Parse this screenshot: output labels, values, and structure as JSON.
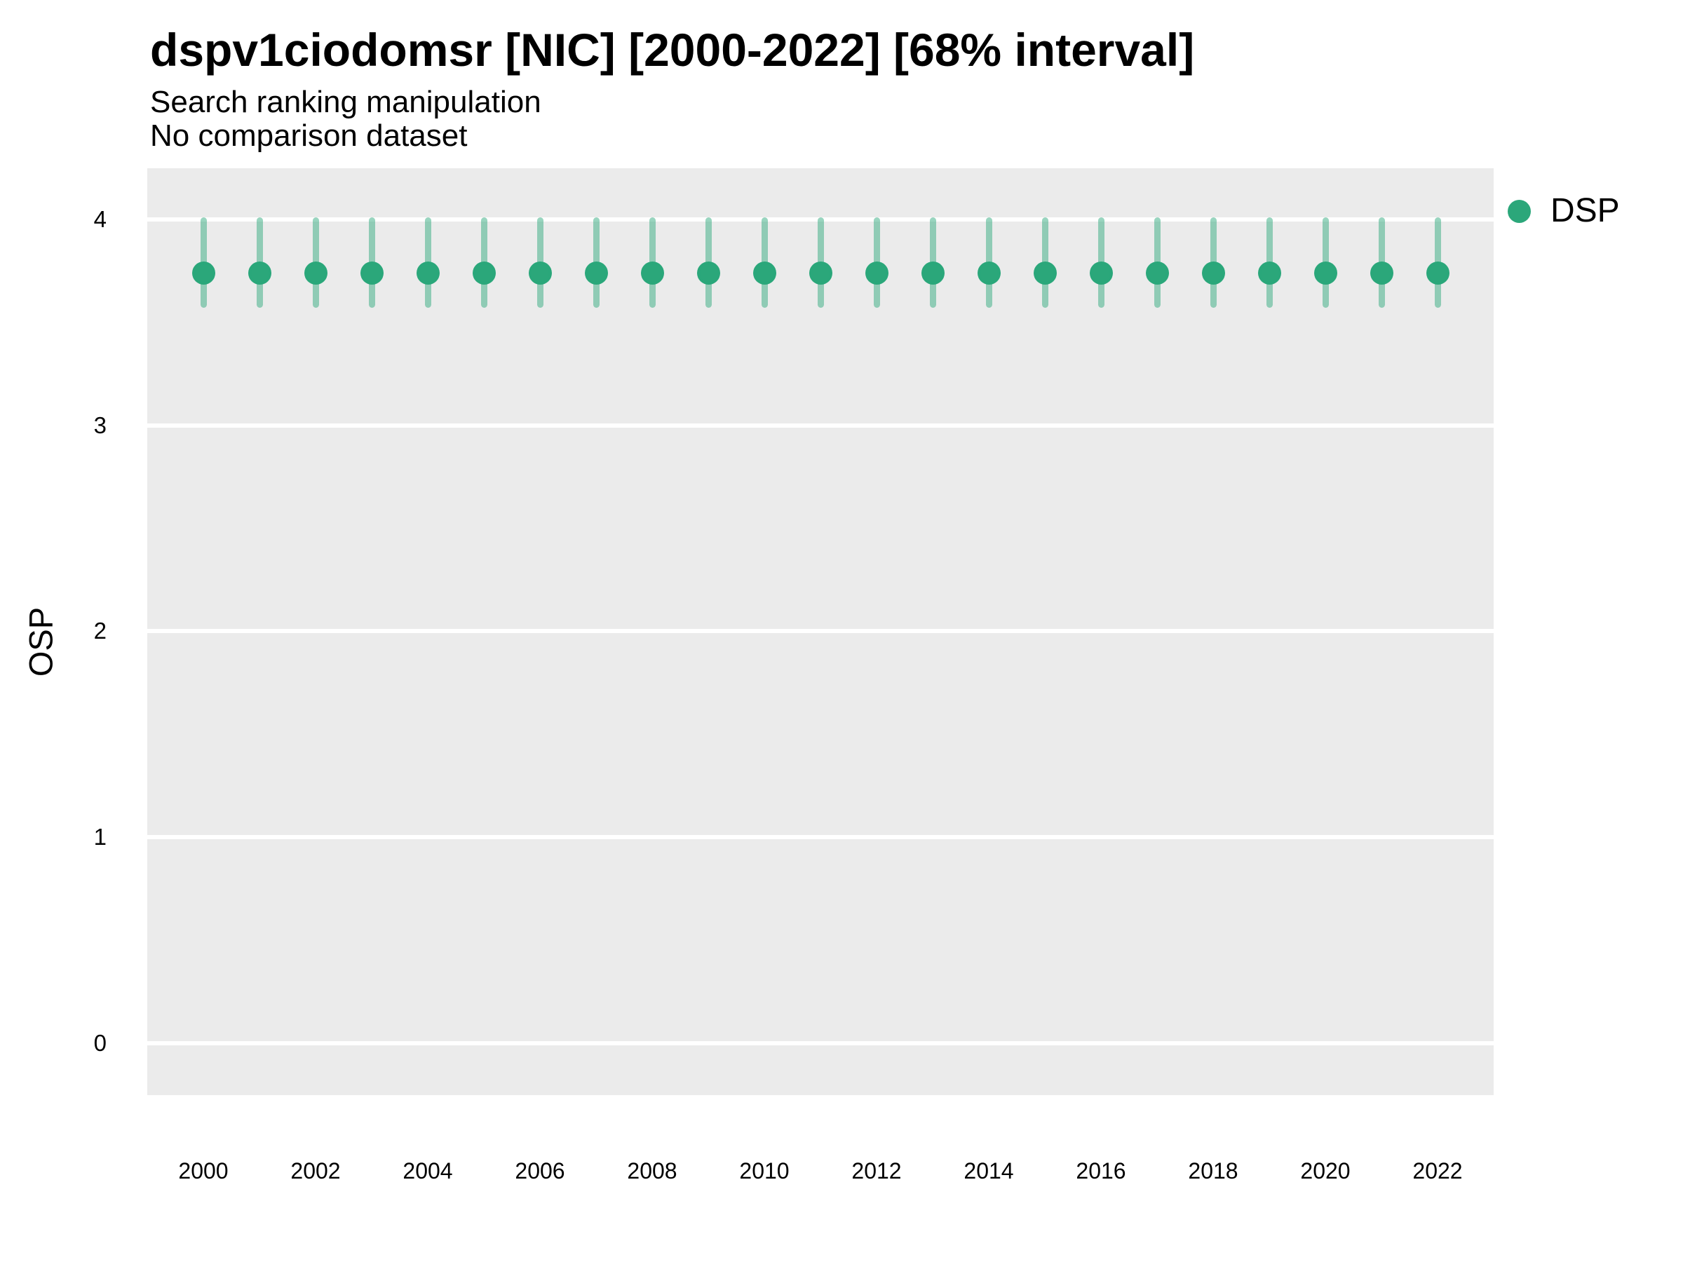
{
  "chart_data": {
    "type": "scatter",
    "variant": "pointrange",
    "title": "dspv1ciodomsr [NIC] [2000-2022] [68% interval]",
    "subtitle": "Search ranking manipulation",
    "note": "No comparison dataset",
    "xlabel": "",
    "ylabel": "OSP",
    "interval_level": "68%",
    "x": [
      2000,
      2001,
      2002,
      2003,
      2004,
      2005,
      2006,
      2007,
      2008,
      2009,
      2010,
      2011,
      2012,
      2013,
      2014,
      2015,
      2016,
      2017,
      2018,
      2019,
      2020,
      2021,
      2022
    ],
    "series": [
      {
        "name": "DSP",
        "color": "#2BA77A",
        "values": [
          3.74,
          3.74,
          3.74,
          3.74,
          3.74,
          3.74,
          3.74,
          3.74,
          3.74,
          3.74,
          3.74,
          3.74,
          3.74,
          3.74,
          3.74,
          3.74,
          3.74,
          3.74,
          3.74,
          3.74,
          3.74,
          3.74,
          3.74
        ],
        "ci_low": [
          3.57,
          3.57,
          3.57,
          3.57,
          3.57,
          3.57,
          3.57,
          3.57,
          3.57,
          3.57,
          3.57,
          3.57,
          3.57,
          3.57,
          3.57,
          3.57,
          3.57,
          3.57,
          3.57,
          3.57,
          3.57,
          3.57,
          3.57
        ],
        "ci_high": [
          4.01,
          4.01,
          4.01,
          4.01,
          4.01,
          4.01,
          4.01,
          4.01,
          4.01,
          4.01,
          4.01,
          4.01,
          4.01,
          4.01,
          4.01,
          4.01,
          4.01,
          4.01,
          4.01,
          4.01,
          4.01,
          4.01,
          4.01
        ]
      }
    ],
    "x_tick_labels": [
      "2000",
      "2002",
      "2004",
      "2006",
      "2008",
      "2010",
      "2012",
      "2014",
      "2016",
      "2018",
      "2020",
      "2022"
    ],
    "y_tick_labels": [
      "0",
      "1",
      "2",
      "3",
      "4"
    ],
    "ylim": [
      -0.25,
      4.25
    ],
    "grid": "major-horizontal-white",
    "panel_bg": "#EBEBEB",
    "gridline_color": "#FFFFFF",
    "legend_position": "right-top",
    "legend": {
      "entries": [
        {
          "label": "DSP",
          "color": "#2BA77A"
        }
      ]
    }
  }
}
